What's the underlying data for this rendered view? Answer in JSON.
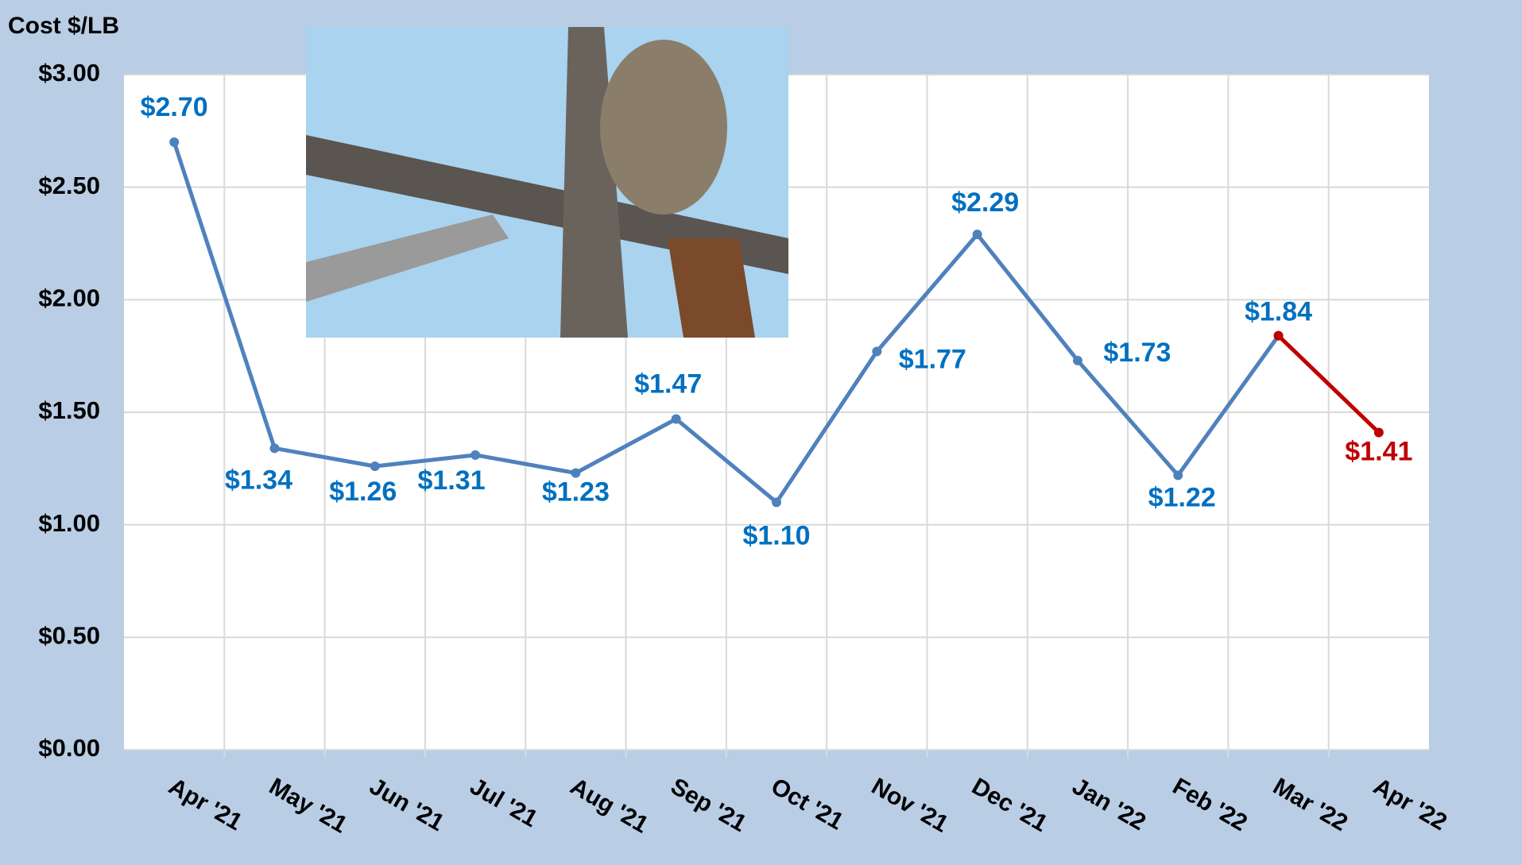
{
  "chart_data": {
    "type": "line",
    "y_label": "Cost $/LB",
    "categories": [
      "Apr '21",
      "May '21",
      "Jun '21",
      "Jul '21",
      "Aug '21",
      "Sep '21",
      "Oct '21",
      "Nov '21",
      "Dec '21",
      "Jan '22",
      "Feb '22",
      "Mar '22",
      "Apr '22"
    ],
    "series": [
      {
        "color": "#4f81bd",
        "label_color": "#0070c0",
        "values": [
          2.7,
          1.34,
          1.26,
          1.31,
          1.23,
          1.47,
          1.1,
          1.77,
          2.29,
          1.73,
          1.22,
          1.84,
          null
        ],
        "value_labels": [
          "$2.70",
          "$1.34",
          "$1.26",
          "$1.31",
          "$1.23",
          "$1.47",
          "$1.10",
          "$1.77",
          "$2.29",
          "$1.73",
          "$1.22",
          "$1.84",
          null
        ]
      },
      {
        "color": "#c00000",
        "label_color": "#c00000",
        "values": [
          null,
          null,
          null,
          null,
          null,
          null,
          null,
          null,
          null,
          null,
          null,
          1.84,
          1.41
        ],
        "value_labels": [
          null,
          null,
          null,
          null,
          null,
          null,
          null,
          null,
          null,
          null,
          null,
          null,
          "$1.41"
        ]
      }
    ],
    "ylim": [
      0,
      3
    ],
    "yticks": [
      {
        "value": 0,
        "label": "$0.00"
      },
      {
        "value": 0.5,
        "label": "$0.50"
      },
      {
        "value": 1,
        "label": "$1.00"
      },
      {
        "value": 1.5,
        "label": "$1.50"
      },
      {
        "value": 2,
        "label": "$2.00"
      },
      {
        "value": 2.5,
        "label": "$2.50"
      },
      {
        "value": 3,
        "label": "$3.00"
      }
    ],
    "grid": true
  }
}
